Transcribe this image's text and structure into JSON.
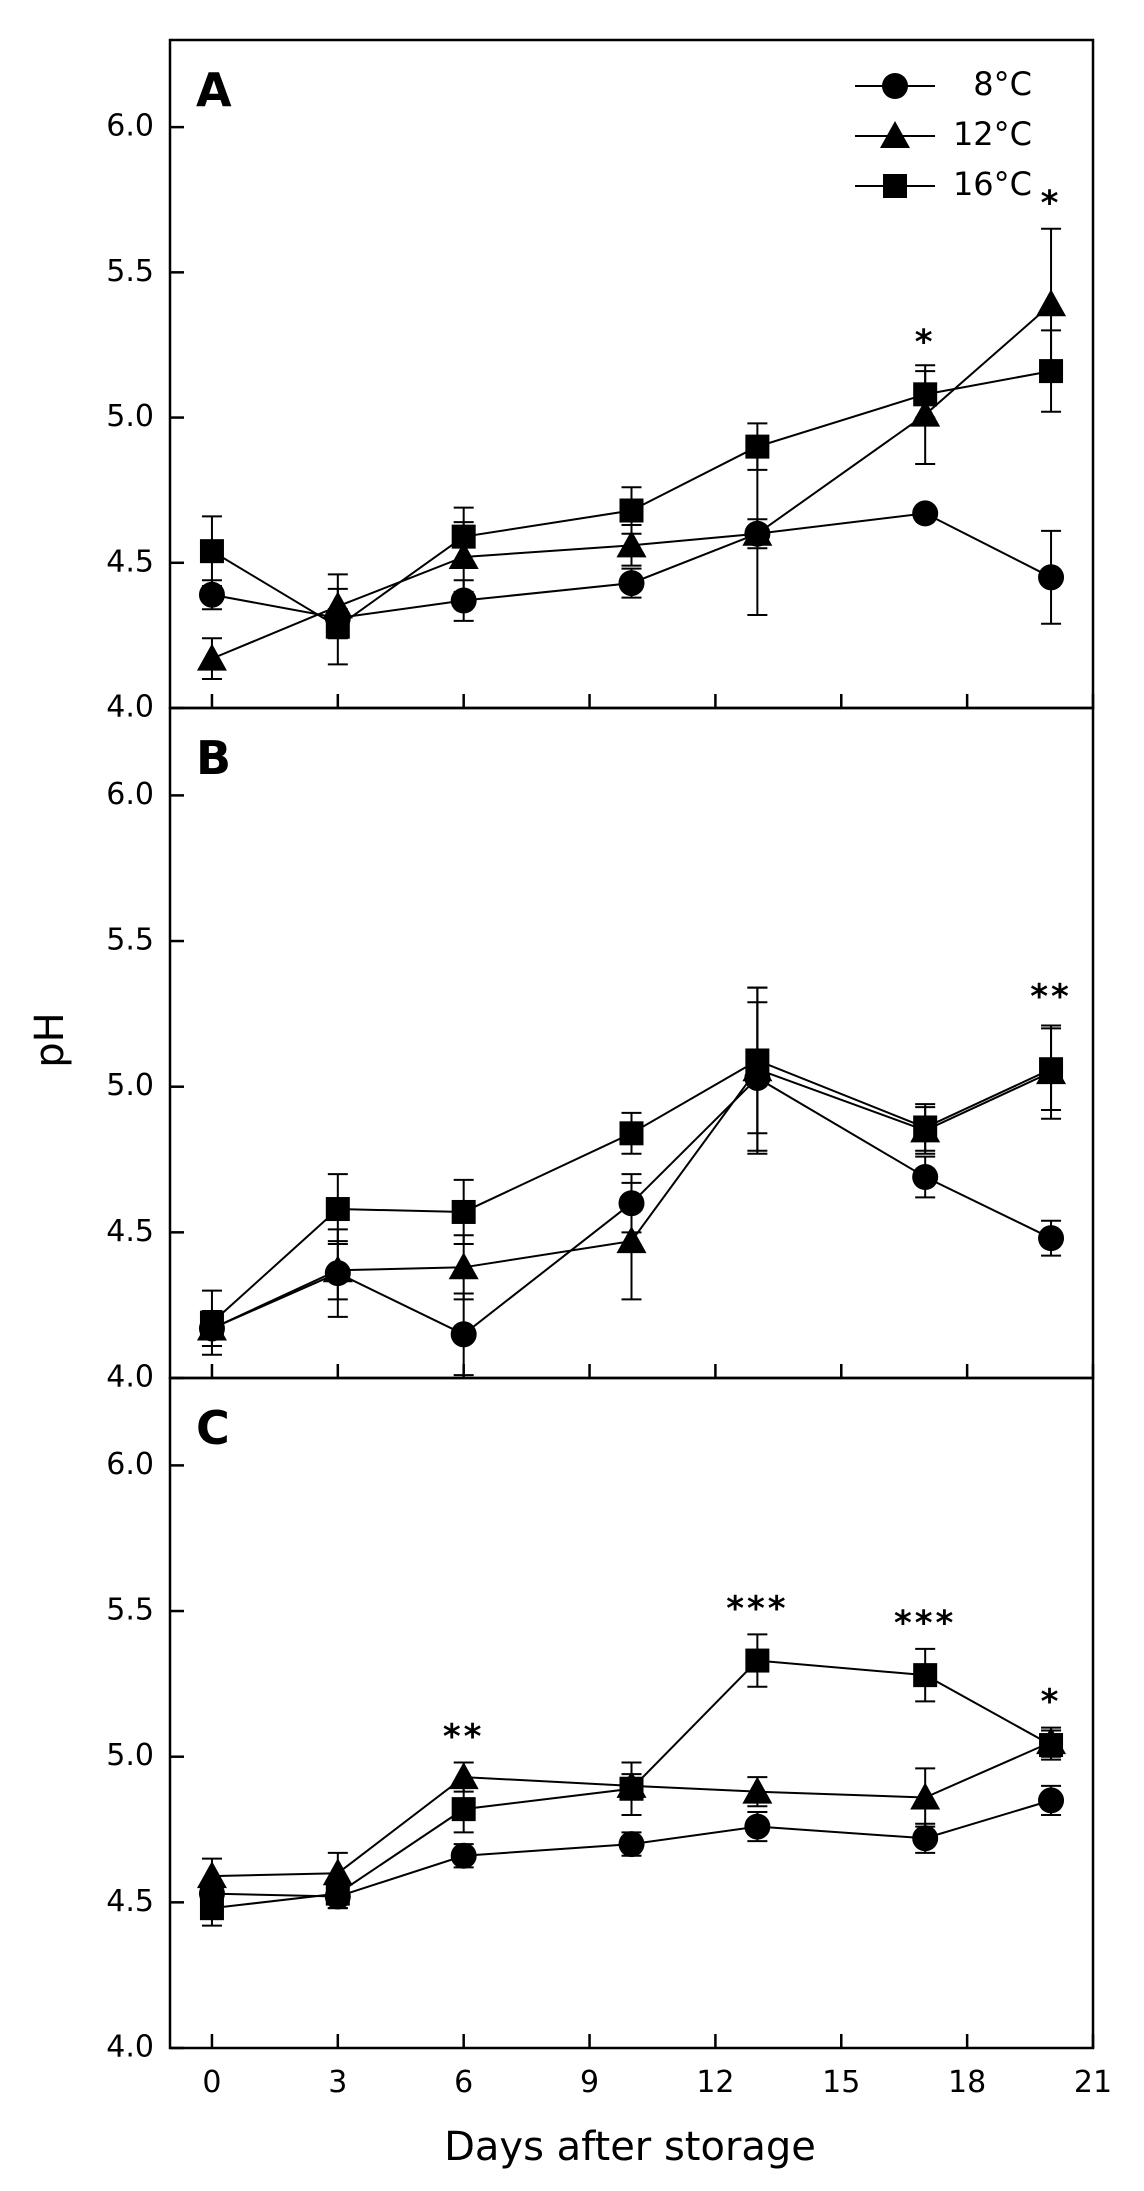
{
  "figure": {
    "ylabel": "pH",
    "xlabel": "Days after storage"
  },
  "colors": {
    "ink": "#000000",
    "background": "#ffffff"
  },
  "legend": [
    {
      "label": "8°C",
      "marker": "circle"
    },
    {
      "label": "12°C",
      "marker": "triangle"
    },
    {
      "label": "16°C",
      "marker": "square"
    }
  ],
  "chart_data": [
    {
      "type": "line",
      "panel": "A",
      "xlabel": "Days after storage",
      "ylabel": "pH",
      "xlim": [
        -1,
        21
      ],
      "ylim": [
        4.0,
        6.3
      ],
      "xticks": [
        0,
        3,
        6,
        9,
        12,
        15,
        18,
        21
      ],
      "yticks": [
        4.0,
        4.5,
        5.0,
        5.5,
        6.0
      ],
      "ytick_labels": [
        "4.0",
        "4.5",
        "5.0",
        "5.5",
        "6.0"
      ],
      "x": [
        0,
        3,
        6,
        10,
        13,
        17,
        20
      ],
      "series": [
        {
          "name": "8°C",
          "marker": "circle",
          "values": [
            4.39,
            4.31,
            4.37,
            4.43,
            4.6,
            4.67,
            4.45
          ],
          "errors": [
            0.05,
            0.03,
            0.07,
            0.05,
            0.28,
            0.02,
            0.16
          ]
        },
        {
          "name": "12°C",
          "marker": "triangle",
          "values": [
            4.17,
            4.35,
            4.52,
            4.56,
            4.6,
            5.01,
            5.39
          ],
          "errors": [
            0.07,
            0.11,
            0.12,
            0.07,
            0.05,
            0.17,
            0.26
          ]
        },
        {
          "name": "16°C",
          "marker": "square",
          "values": [
            4.54,
            4.28,
            4.59,
            4.68,
            4.9,
            5.08,
            5.16
          ],
          "errors": [
            0.12,
            0.13,
            0.1,
            0.08,
            0.08,
            0.08,
            0.14
          ]
        }
      ],
      "annotations": [
        {
          "text": "*",
          "x": 17,
          "y": 5.22
        },
        {
          "text": "*",
          "x": 20,
          "y": 5.7
        }
      ]
    },
    {
      "type": "line",
      "panel": "B",
      "xlabel": "Days after storage",
      "ylabel": "pH",
      "xlim": [
        -1,
        21
      ],
      "ylim": [
        4.0,
        6.3
      ],
      "xticks": [
        0,
        3,
        6,
        9,
        12,
        15,
        18,
        21
      ],
      "yticks": [
        4.0,
        4.5,
        5.0,
        5.5,
        6.0
      ],
      "ytick_labels": [
        "4.0",
        "4.5",
        "5.0",
        "5.5",
        "6.0"
      ],
      "x": [
        0,
        3,
        6,
        10,
        13,
        17,
        20
      ],
      "series": [
        {
          "name": "8°C",
          "marker": "circle",
          "values": [
            4.17,
            4.36,
            4.15,
            4.6,
            5.03,
            4.69,
            4.48
          ],
          "errors": [
            0.06,
            0.15,
            0.14,
            0.1,
            0.26,
            0.07,
            0.06
          ]
        },
        {
          "name": "12°C",
          "marker": "triangle",
          "values": [
            4.17,
            4.37,
            4.38,
            4.47,
            5.06,
            4.85,
            5.05
          ],
          "errors": [
            0.06,
            0.1,
            0.11,
            0.2,
            0.28,
            0.08,
            0.16
          ]
        },
        {
          "name": "16°C",
          "marker": "square",
          "values": [
            4.19,
            4.58,
            4.57,
            4.84,
            5.09,
            4.86,
            5.06
          ],
          "errors": [
            0.11,
            0.12,
            0.11,
            0.07,
            0.25,
            0.08,
            0.14
          ]
        }
      ],
      "annotations": [
        {
          "text": "**",
          "x": 20,
          "y": 5.27
        }
      ]
    },
    {
      "type": "line",
      "panel": "C",
      "xlabel": "Days after storage",
      "ylabel": "pH",
      "xlim": [
        -1,
        21
      ],
      "ylim": [
        4.0,
        6.3
      ],
      "xticks": [
        0,
        3,
        6,
        9,
        12,
        15,
        18,
        21
      ],
      "yticks": [
        4.0,
        4.5,
        5.0,
        5.5,
        6.0
      ],
      "ytick_labels": [
        "4.0",
        "4.5",
        "5.0",
        "5.5",
        "6.0"
      ],
      "xtick_labels": [
        "0",
        "3",
        "6",
        "9",
        "12",
        "15",
        "18",
        "21"
      ],
      "x": [
        0,
        3,
        6,
        10,
        13,
        17,
        20
      ],
      "series": [
        {
          "name": "8°C",
          "marker": "circle",
          "values": [
            4.53,
            4.52,
            4.66,
            4.7,
            4.76,
            4.72,
            4.85
          ],
          "errors": [
            0.04,
            0.04,
            0.04,
            0.04,
            0.05,
            0.05,
            0.05
          ]
        },
        {
          "name": "12°C",
          "marker": "triangle",
          "values": [
            4.59,
            4.6,
            4.93,
            4.9,
            4.88,
            4.86,
            5.05
          ],
          "errors": [
            0.06,
            0.07,
            0.05,
            0.04,
            0.05,
            0.1,
            0.05
          ]
        },
        {
          "name": "16°C",
          "marker": "square",
          "values": [
            4.48,
            4.53,
            4.82,
            4.89,
            5.33,
            5.28,
            5.04
          ],
          "errors": [
            0.06,
            0.05,
            0.08,
            0.09,
            0.09,
            0.09,
            0.05
          ]
        }
      ],
      "annotations": [
        {
          "text": "**",
          "x": 6,
          "y": 5.03
        },
        {
          "text": "***",
          "x": 13,
          "y": 5.47
        },
        {
          "text": "***",
          "x": 17,
          "y": 5.42
        },
        {
          "text": "*",
          "x": 20,
          "y": 5.15
        }
      ]
    }
  ]
}
